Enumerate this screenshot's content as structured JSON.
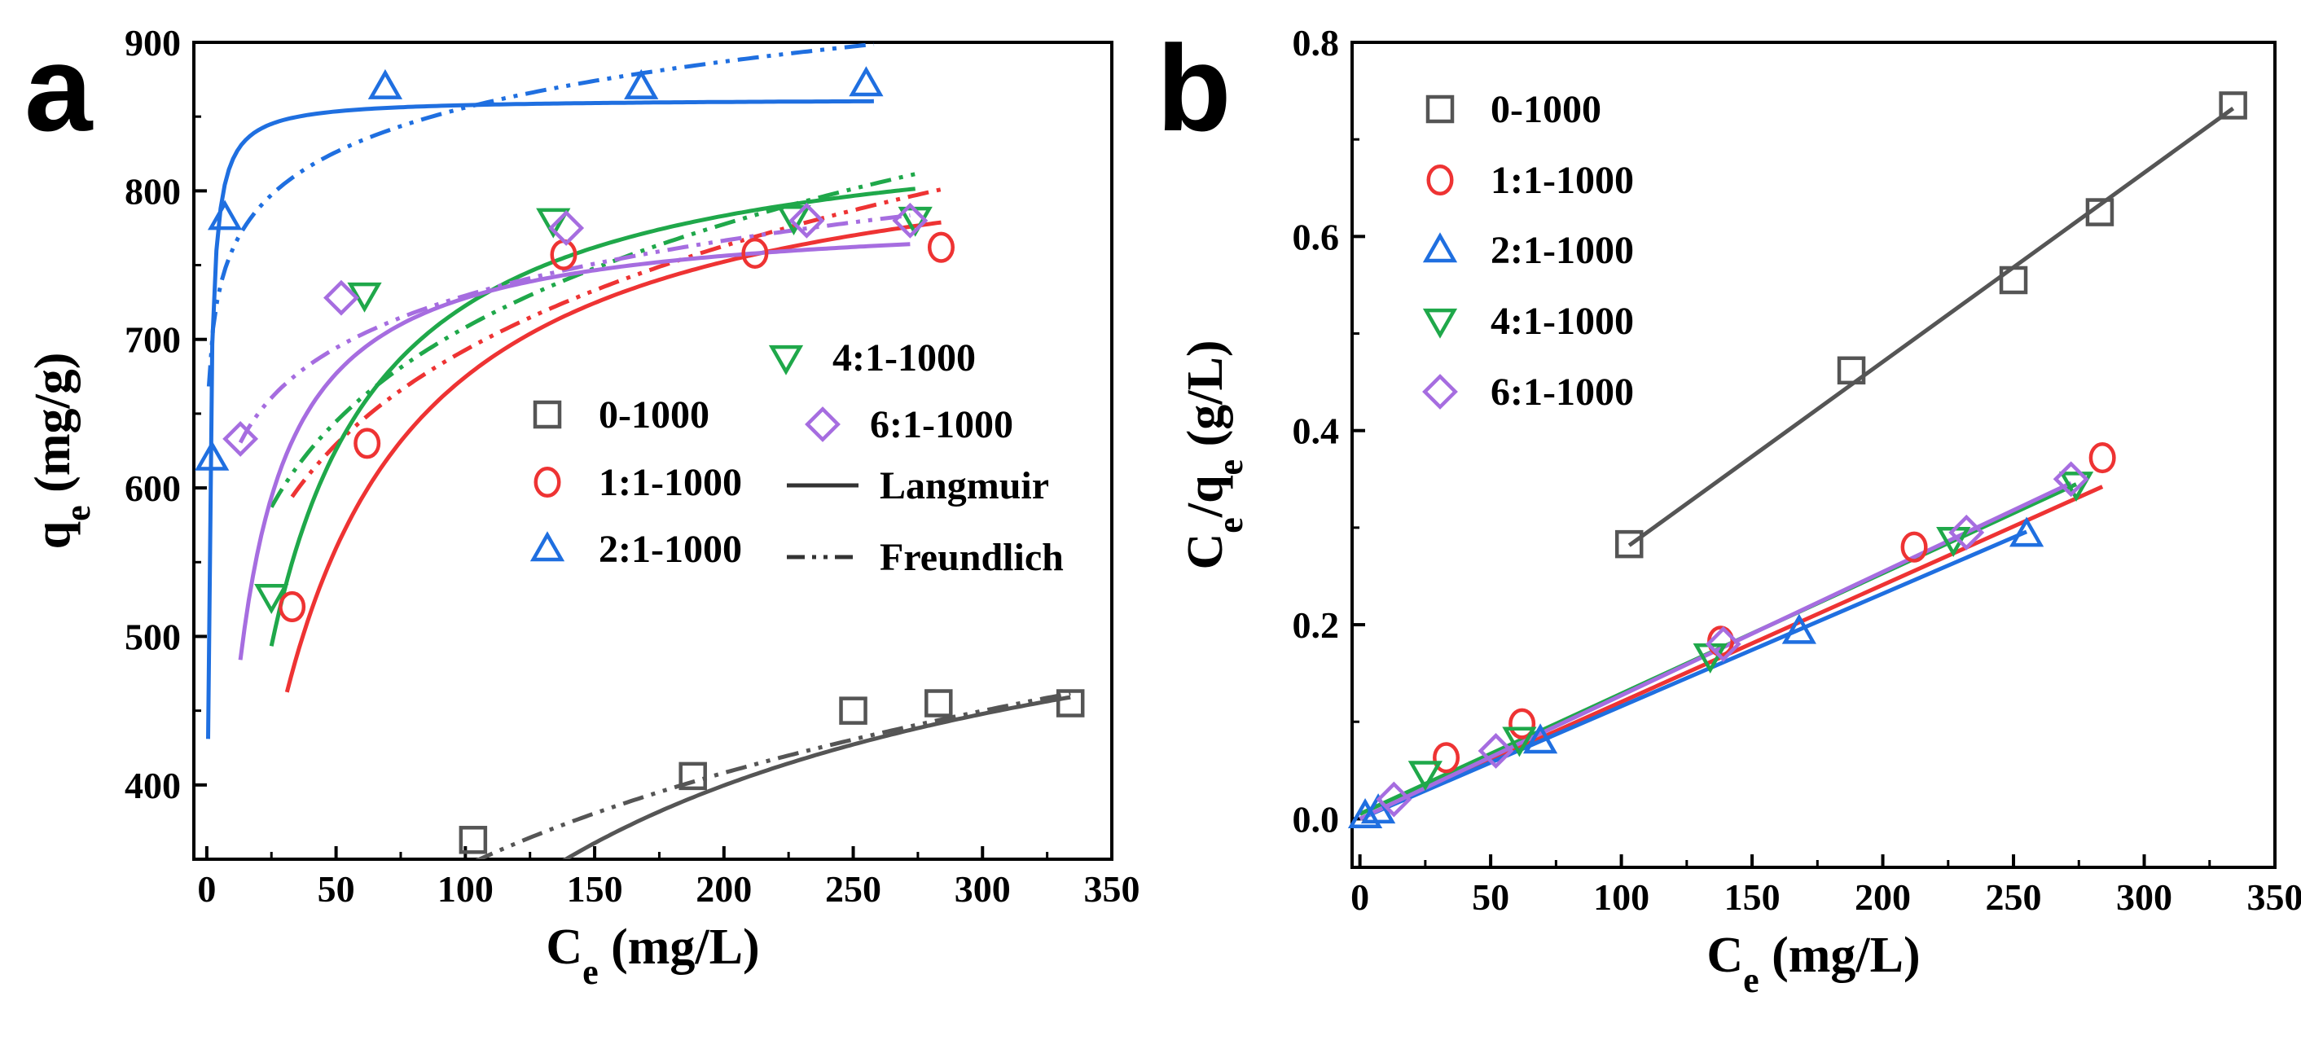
{
  "chart_data": [
    {
      "panel": "a",
      "type": "scatter",
      "xlabel": "C",
      "xlabel_sub": "e",
      "xlabel_unit": "(mg/L)",
      "ylabel": "q",
      "ylabel_sub": "e",
      "ylabel_unit": "(mg/g)",
      "xlim": [
        -5,
        350
      ],
      "ylim": [
        350,
        900
      ],
      "xticks": [
        "0",
        "50",
        "100",
        "150",
        "200",
        "250",
        "300",
        "350"
      ],
      "yticks": [
        "400",
        "500",
        "600",
        "700",
        "800",
        "900"
      ],
      "grid": false,
      "legend": [
        {
          "label": "0-1000",
          "marker": "square",
          "color": "#555555"
        },
        {
          "label": "1:1-1000",
          "marker": "circle",
          "color": "#ee3333"
        },
        {
          "label": "2:1-1000",
          "marker": "triangle-up",
          "color": "#1f6fe0"
        },
        {
          "label": "4:1-1000",
          "marker": "triangle-down",
          "color": "#1fa84a"
        },
        {
          "label": "6:1-1000",
          "marker": "diamond",
          "color": "#a66de0"
        },
        {
          "label": "Langmuir",
          "line": "solid",
          "color": "#333333"
        },
        {
          "label": "Freundlich",
          "line": "dash-dot-dot",
          "color": "#333333"
        }
      ],
      "series": [
        {
          "name": "0-1000",
          "color": "#555555",
          "marker": "square",
          "x": [
            103,
            188,
            250,
            283,
            334
          ],
          "y": [
            363,
            406,
            450,
            455,
            455
          ],
          "langmuir": {
            "qm": 590,
            "kl": 0.0105,
            "xmin": 103,
            "xmax": 334
          },
          "freundlich": {
            "kf": 114.2,
            "n": 4.16,
            "xmin": 103,
            "xmax": 334
          }
        },
        {
          "name": "1:1-1000",
          "color": "#ee3333",
          "marker": "circle",
          "x": [
            33,
            62,
            138,
            212,
            284
          ],
          "y": [
            520,
            630,
            757,
            758,
            762
          ],
          "langmuir": {
            "qm": 850,
            "kl": 0.0385,
            "xmin": 31,
            "xmax": 284
          },
          "freundlich": {
            "kf": 365.5,
            "n": 7.2,
            "xmin": 33,
            "xmax": 284
          }
        },
        {
          "name": "2:1-1000",
          "color": "#1f6fe0",
          "marker": "triangle-up",
          "x": [
            2,
            7,
            69,
            168,
            255
          ],
          "y": [
            620,
            782,
            870,
            870,
            872
          ],
          "langmuir": {
            "qm": 862,
            "kl": 2.0,
            "xmin": 0.5,
            "xmax": 258
          },
          "freundlich": {
            "kf": 676,
            "n": 19.5,
            "xmin": 0.8,
            "xmax": 258
          }
        },
        {
          "name": "4:1-1000",
          "color": "#1fa84a",
          "marker": "triangle-down",
          "x": [
            25,
            61,
            134,
            227,
            274
          ],
          "y": [
            527,
            730,
            780,
            782,
            781
          ],
          "langmuir": {
            "qm": 855,
            "kl": 0.0546,
            "xmin": 25,
            "xmax": 274
          },
          "freundlich": {
            "kf": 380,
            "n": 7.4,
            "xmin": 25,
            "xmax": 274
          }
        },
        {
          "name": "6:1-1000",
          "color": "#a66de0",
          "marker": "diamond",
          "x": [
            13,
            52,
            139,
            232,
            272
          ],
          "y": [
            633,
            728,
            775,
            780,
            780
          ],
          "langmuir": {
            "qm": 787,
            "kl": 0.123,
            "xmin": 13,
            "xmax": 272
          },
          "freundlich": {
            "kf": 525,
            "n": 14,
            "xmin": 13,
            "xmax": 272
          }
        }
      ]
    },
    {
      "panel": "b",
      "type": "scatter",
      "xlabel": "C",
      "xlabel_sub": "e",
      "xlabel_unit": "(mg/L)",
      "ylabel": "C",
      "ylabel_sub": "e",
      "ylabel_mid": "/q",
      "ylabel_sub2": "e",
      "ylabel_unit": "(g/L)",
      "xlim": [
        -3,
        350
      ],
      "ylim": [
        -0.05,
        0.8
      ],
      "xticks": [
        "0",
        "50",
        "100",
        "150",
        "200",
        "250",
        "300",
        "350"
      ],
      "yticks": [
        "0.0",
        "0.2",
        "0.4",
        "0.6",
        "0.8"
      ],
      "grid": false,
      "legend": [
        {
          "label": "0-1000",
          "marker": "square",
          "color": "#555555"
        },
        {
          "label": "1:1-1000",
          "marker": "circle",
          "color": "#ee3333"
        },
        {
          "label": "2:1-1000",
          "marker": "triangle-up",
          "color": "#1f6fe0"
        },
        {
          "label": "4:1-1000",
          "marker": "triangle-down",
          "color": "#1fa84a"
        },
        {
          "label": "6:1-1000",
          "marker": "diamond",
          "color": "#a66de0"
        }
      ],
      "series": [
        {
          "name": "0-1000",
          "color": "#555555",
          "marker": "square",
          "x": [
            103,
            188,
            250,
            283,
            334
          ],
          "y": [
            0.283,
            0.462,
            0.555,
            0.625,
            0.735
          ],
          "fit": {
            "slope": 0.001949,
            "intercept": 0.081,
            "xmin": 103,
            "xmax": 334
          }
        },
        {
          "name": "1:1-1000",
          "color": "#ee3333",
          "marker": "circle",
          "x": [
            33,
            62,
            138,
            212,
            284
          ],
          "y": [
            0.063,
            0.098,
            0.183,
            0.28,
            0.372
          ],
          "fit": {
            "slope": 0.001205,
            "intercept": 0.0,
            "xmin": 0,
            "xmax": 284
          }
        },
        {
          "name": "2:1-1000",
          "color": "#1f6fe0",
          "marker": "triangle-up",
          "x": [
            2,
            7,
            69,
            168,
            255
          ],
          "y": [
            0.003,
            0.008,
            0.08,
            0.193,
            0.293
          ],
          "fit": {
            "slope": 0.00116,
            "intercept": 0.0,
            "xmin": 0,
            "xmax": 255
          }
        },
        {
          "name": "4:1-1000",
          "color": "#1fa84a",
          "marker": "triangle-down",
          "x": [
            25,
            61,
            134,
            227,
            274
          ],
          "y": [
            0.047,
            0.082,
            0.168,
            0.288,
            0.345
          ],
          "fit": {
            "slope": 0.00124,
            "intercept": 0.005,
            "xmin": 0,
            "xmax": 274
          }
        },
        {
          "name": "6:1-1000",
          "color": "#a66de0",
          "marker": "diamond",
          "x": [
            13,
            52,
            139,
            232,
            272
          ],
          "y": [
            0.02,
            0.07,
            0.18,
            0.295,
            0.35
          ],
          "fit": {
            "slope": 0.001272,
            "intercept": 0.0,
            "xmin": 0,
            "xmax": 272
          }
        }
      ]
    }
  ]
}
